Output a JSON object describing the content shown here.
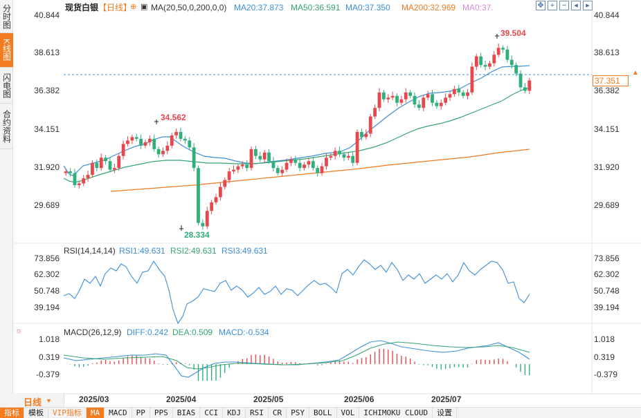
{
  "left_tabs": [
    {
      "label": "分时图",
      "active": false
    },
    {
      "label": "K线图",
      "active": true
    },
    {
      "label": "闪电图",
      "active": false
    },
    {
      "label": "合约资料",
      "active": false
    }
  ],
  "header": {
    "symbol": "现货白银",
    "period": "【日线】",
    "ma_label": "MA(20,50,0,200,0,0)",
    "ma20": "MA20:37.873",
    "ma50": "MA50:36.591",
    "ma0": "MA0:37.350",
    "ma200": "MA200:32.969",
    "ma0b": "MA0:37."
  },
  "rsi_header": {
    "label": "RSI(14,14,14)",
    "rsi1": "RSI1:49.631",
    "rsi2": "RSI2:49.631",
    "rsi3": "RSI3:49.631"
  },
  "macd_header": {
    "label": "MACD(26,12,9)",
    "diff": "DIFF:0.242",
    "dea": "DEA:0.509",
    "macd": "MACD:-0.534"
  },
  "price_axis": [
    "40.844",
    "38.613",
    "36.382",
    "34.151",
    "31.920",
    "29.689"
  ],
  "rsi_axis": [
    "73.856",
    "62.302",
    "50.748",
    "39.194"
  ],
  "macd_axis": [
    "1.018",
    "0.319",
    "-0.379"
  ],
  "current_price": "37.351",
  "annotations": {
    "high": "39.504",
    "mid_high": "34.562",
    "low": "28.334"
  },
  "x_labels": [
    "2025/03",
    "2025/04",
    "2025/05",
    "2025/06",
    "2025/07"
  ],
  "period_selector": {
    "label": "日线"
  },
  "bottom_tabs": [
    "指标",
    "模板",
    "VIP指标",
    "MA",
    "MACD",
    "PP",
    "PPS",
    "BIAS",
    "CCI",
    "KDJ",
    "RSI",
    "CR",
    "PSY",
    "BOLL",
    "VOL",
    "ICHIMOKU CLOUD",
    "设置"
  ],
  "colors": {
    "up": "#e8474c",
    "down": "#2fb07a",
    "ma20": "#3a8fd8",
    "ma50": "#34a56f",
    "ma200": "#f07a1e",
    "accent": "#f47b20",
    "rsi": "#3a8fd8",
    "diff": "#3a8fd8",
    "dea": "#34a56f"
  },
  "chart_data": {
    "type": "candlestick",
    "ylim": [
      28.0,
      41.2
    ],
    "closes": [
      32.1,
      32.0,
      31.3,
      31.4,
      31.7,
      31.9,
      32.6,
      32.3,
      32.9,
      32.7,
      32.2,
      32.3,
      33.0,
      33.7,
      33.9,
      34.1,
      34.0,
      33.6,
      33.8,
      34.0,
      33.4,
      33.1,
      33.3,
      33.6,
      34.2,
      34.4,
      34.0,
      33.9,
      33.5,
      32.3,
      29.1,
      28.9,
      29.8,
      30.3,
      30.6,
      31.2,
      31.6,
      32.1,
      32.2,
      32.4,
      32.5,
      32.3,
      33.4,
      33.0,
      32.8,
      33.2,
      32.7,
      32.3,
      32.0,
      32.2,
      32.6,
      32.8,
      32.6,
      32.3,
      32.5,
      32.7,
      32.3,
      32.0,
      32.4,
      32.9,
      33.0,
      33.3,
      33.1,
      32.9,
      33.0,
      32.6,
      34.4,
      34.1,
      34.3,
      35.3,
      35.8,
      36.7,
      36.3,
      36.4,
      36.5,
      36.1,
      36.3,
      36.7,
      36.5,
      36.0,
      35.8,
      36.4,
      36.6,
      36.1,
      35.9,
      36.1,
      36.4,
      36.6,
      36.9,
      36.7,
      36.5,
      36.7,
      38.2,
      38.8,
      38.3,
      38.2,
      38.4,
      38.9,
      39.3,
      39.2,
      38.6,
      38.3,
      37.8,
      37.0,
      36.8,
      37.4
    ]
  }
}
